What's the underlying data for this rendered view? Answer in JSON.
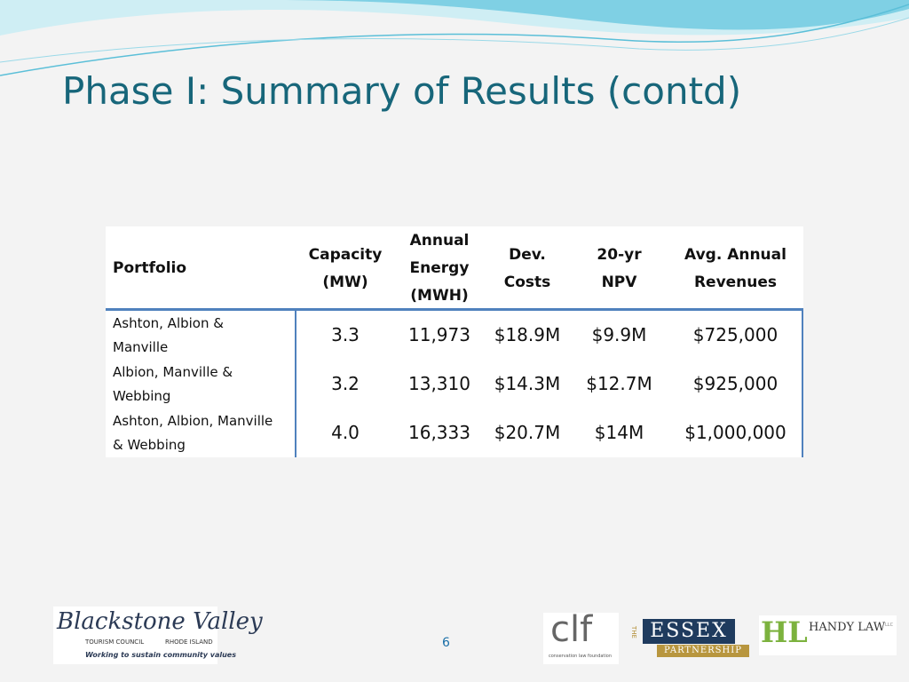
{
  "title": "Phase I: Summary of Results (contd)",
  "table": {
    "header": [
      [
        "Portfolio"
      ],
      [
        "Capacity",
        "(MW)"
      ],
      [
        "Annual",
        "Energy",
        "(MWH)"
      ],
      [
        "Dev.",
        "Costs"
      ],
      [
        "20-yr",
        "NPV"
      ],
      [
        "Avg. Annual",
        "Revenues"
      ]
    ],
    "rows": [
      [
        [
          "Ashton, Albion &",
          "Manville"
        ],
        "3.3",
        "11,973",
        "$18.9M",
        "$9.9M",
        "$725,000"
      ],
      [
        [
          "Albion, Manville &",
          "Webbing"
        ],
        "3.2",
        "13,310",
        "$14.3M",
        "$12.7M",
        "$925,000"
      ],
      [
        [
          "Ashton, Albion, Manville",
          "& Webbing"
        ],
        "4.0",
        "16,333",
        "$20.7M",
        "$14M",
        "$1,000,000"
      ]
    ]
  },
  "page_number": "6",
  "logos": {
    "blackstone": {
      "name": "Blackstone Valley",
      "sub_left": "TOURISM COUNCIL",
      "sub_right": "RHODE ISLAND",
      "tagline": "Working to sustain community values"
    },
    "clf": {
      "name": "clf",
      "sub": "conservation law foundation"
    },
    "essex": {
      "the": "THE",
      "name": "ESSEX",
      "sub": "PARTNERSHIP"
    },
    "handy": {
      "mark": "HL",
      "name": "HANDY LAW",
      "suffix": "LLC"
    }
  }
}
